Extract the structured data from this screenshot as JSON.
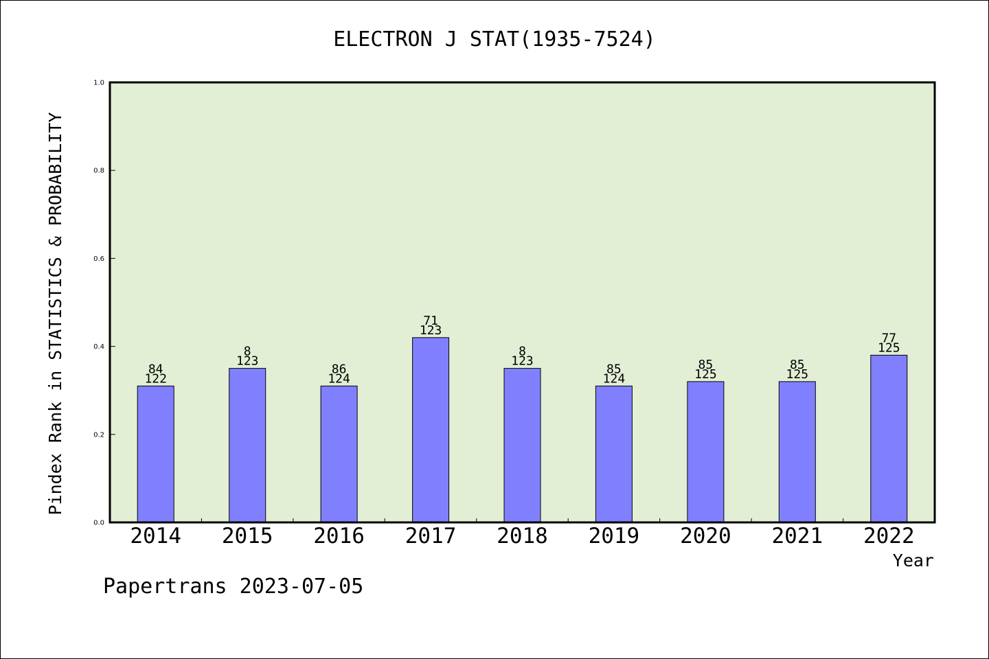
{
  "colors": {
    "plot_background": "#e2efd5",
    "bar_fill": "#8080ff",
    "bar_stroke": "#000000",
    "axis": "#000000"
  },
  "footer": "Papertrans 2023-07-05",
  "chart_data": {
    "type": "bar",
    "title": "ELECTRON J STAT(1935-7524)",
    "xlabel": "Year",
    "ylabel": "Pindex Rank in STATISTICS & PROBABILITY",
    "ylim": [
      0,
      1.0
    ],
    "yticks": [
      "0.0",
      "0.2",
      "0.4",
      "0.6",
      "0.8",
      "1.0"
    ],
    "grid": false,
    "categories": [
      "2014",
      "2015",
      "2016",
      "2017",
      "2018",
      "2019",
      "2020",
      "2021",
      "2022"
    ],
    "values": [
      0.31,
      0.35,
      0.31,
      0.42,
      0.35,
      0.31,
      0.32,
      0.32,
      0.38
    ],
    "rank_labels": [
      "84",
      "8",
      "86",
      "71",
      "8",
      "85",
      "85",
      "85",
      "77"
    ],
    "total_labels": [
      "122",
      "123",
      "124",
      "123",
      "123",
      "124",
      "125",
      "125",
      "125"
    ]
  }
}
